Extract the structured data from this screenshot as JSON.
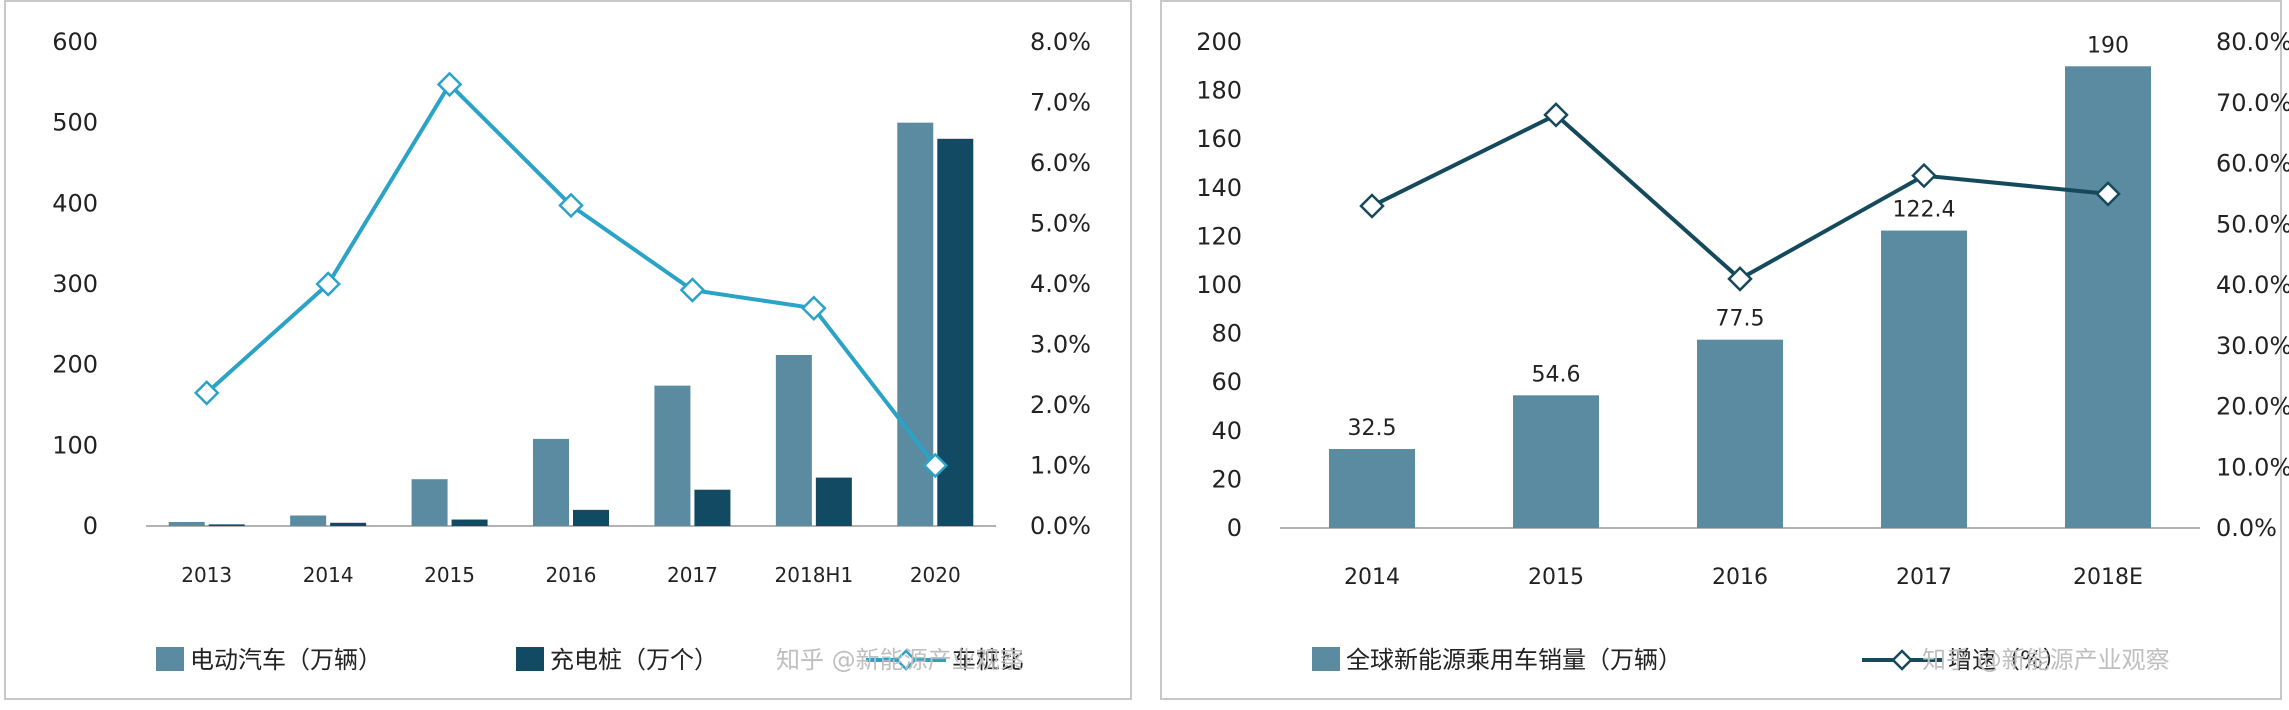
{
  "chart_data": [
    {
      "type": "bar",
      "categories": [
        "2013",
        "2014",
        "2015",
        "2016",
        "2017",
        "2018H1",
        "2020"
      ],
      "series": [
        {
          "name": "电动汽车（万辆）",
          "kind": "bar",
          "axis": "left",
          "color": "#5b8ba0",
          "values": [
            5,
            13,
            58,
            108,
            174,
            212,
            500
          ]
        },
        {
          "name": "充电桩（万个）",
          "kind": "bar",
          "axis": "left",
          "color": "#134a63",
          "values": [
            2,
            4,
            8,
            20,
            45,
            60,
            480
          ]
        },
        {
          "name": "车桩比",
          "kind": "line",
          "axis": "right",
          "color": "#2aa3c7",
          "values": [
            0.022,
            0.04,
            0.073,
            0.053,
            0.039,
            0.036,
            0.01
          ]
        }
      ],
      "y_left": {
        "min": 0,
        "max": 600,
        "ticks": [
          "0",
          "100",
          "200",
          "300",
          "400",
          "500",
          "600"
        ]
      },
      "y_right": {
        "min": 0,
        "max": 0.08,
        "ticks": [
          "0.0%",
          "1.0%",
          "2.0%",
          "3.0%",
          "4.0%",
          "5.0%",
          "6.0%",
          "7.0%",
          "8.0%"
        ]
      },
      "legend_position": "bottom",
      "watermark": "知乎 @新能源产业观察"
    },
    {
      "type": "bar",
      "categories": [
        "2014",
        "2015",
        "2016",
        "2017",
        "2018E"
      ],
      "series": [
        {
          "name": "全球新能源乘用车销量（万辆）",
          "kind": "bar",
          "axis": "left",
          "color": "#5b8ba0",
          "values": [
            32.5,
            54.6,
            77.5,
            122.4,
            190
          ],
          "labels": [
            "32.5",
            "54.6",
            "77.5",
            "122.4",
            "190"
          ]
        },
        {
          "name": "增速（%）",
          "kind": "line",
          "axis": "right",
          "color": "#154a5c",
          "values": [
            0.53,
            0.68,
            0.41,
            0.58,
            0.55
          ]
        }
      ],
      "y_left": {
        "min": 0,
        "max": 200,
        "ticks": [
          "0",
          "20",
          "40",
          "60",
          "80",
          "100",
          "120",
          "140",
          "160",
          "180",
          "200"
        ]
      },
      "y_right": {
        "min": 0,
        "max": 0.8,
        "ticks": [
          "0.0%",
          "10.0%",
          "20.0%",
          "30.0%",
          "40.0%",
          "50.0%",
          "60.0%",
          "70.0%",
          "80.0%"
        ]
      },
      "legend_position": "bottom",
      "watermark": "知乎 @新能源产业观察"
    }
  ]
}
